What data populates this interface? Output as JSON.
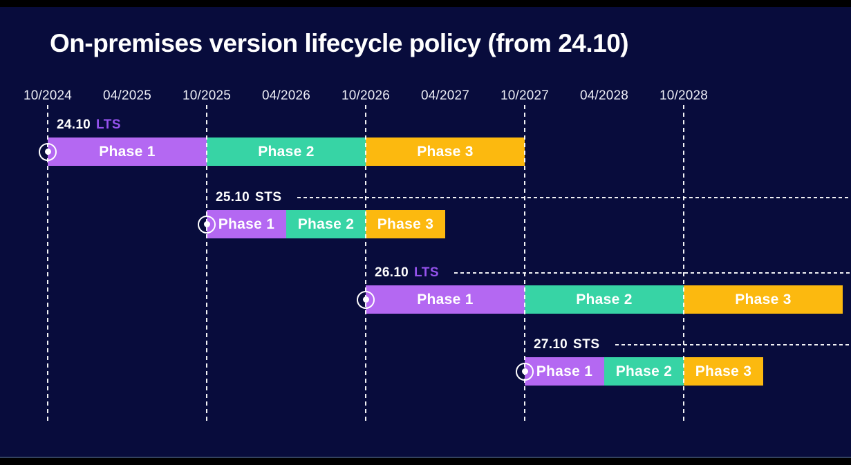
{
  "title": "On-premises version lifecycle policy (from 24.10)",
  "colors": {
    "background": "#080c3c",
    "phase1": "#b468f2",
    "phase2": "#37d4a5",
    "phase3": "#fcb90f",
    "lts_type_text": "#9552ec",
    "sts_type_text": "#ffffff",
    "text": "#ffffff"
  },
  "chart_data": {
    "type": "gantt",
    "title": "On-premises version lifecycle policy (from 24.10)",
    "time_axis": {
      "ticks": [
        "10/2024",
        "04/2025",
        "10/2025",
        "04/2026",
        "10/2026",
        "04/2027",
        "10/2027",
        "04/2028",
        "10/2028"
      ],
      "gridlines_at": [
        "10/2024",
        "10/2025",
        "10/2026",
        "10/2027",
        "10/2028"
      ],
      "grid_style": "dashed-vertical"
    },
    "phase_colors": {
      "Phase 1": "#b468f2",
      "Phase 2": "#37d4a5",
      "Phase 3": "#fcb90f"
    },
    "releases": [
      {
        "version": "24.10",
        "release_type": "LTS",
        "start": "10/2024",
        "leader_line": false,
        "phases": [
          {
            "label": "Phase 1",
            "start": "10/2024",
            "end": "10/2025"
          },
          {
            "label": "Phase 2",
            "start": "10/2025",
            "end": "10/2026"
          },
          {
            "label": "Phase 3",
            "start": "10/2026",
            "end": "10/2027"
          }
        ]
      },
      {
        "version": "25.10",
        "release_type": "STS",
        "start": "10/2025",
        "leader_line": true,
        "phases": [
          {
            "label": "Phase 1",
            "start": "10/2025",
            "end": "04/2026"
          },
          {
            "label": "Phase 2",
            "start": "04/2026",
            "end": "10/2026"
          },
          {
            "label": "Phase 3",
            "start": "10/2026",
            "end": "04/2027"
          }
        ]
      },
      {
        "version": "26.10",
        "release_type": "LTS",
        "start": "10/2026",
        "leader_line": true,
        "phases": [
          {
            "label": "Phase 1",
            "start": "10/2026",
            "end": "10/2027"
          },
          {
            "label": "Phase 2",
            "start": "10/2027",
            "end": "10/2028"
          },
          {
            "label": "Phase 3",
            "start": "10/2028",
            "end": "10/2029"
          }
        ]
      },
      {
        "version": "27.10",
        "release_type": "STS",
        "start": "10/2027",
        "leader_line": true,
        "phases": [
          {
            "label": "Phase 1",
            "start": "10/2027",
            "end": "04/2028"
          },
          {
            "label": "Phase 2",
            "start": "04/2028",
            "end": "10/2028"
          },
          {
            "label": "Phase 3",
            "start": "10/2028",
            "end": "04/2029"
          }
        ]
      }
    ]
  }
}
